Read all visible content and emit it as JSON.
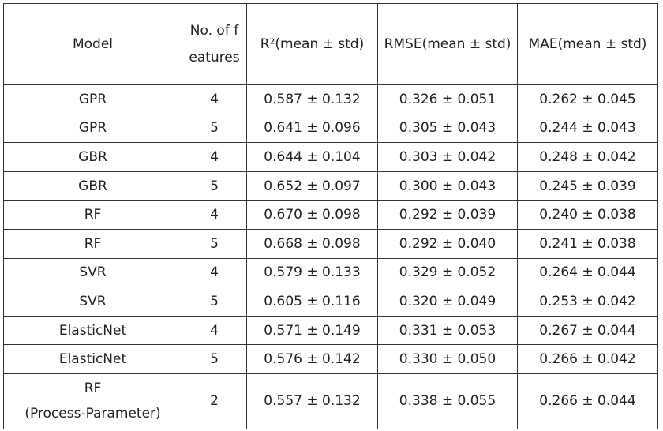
{
  "table": {
    "header": [
      "Model",
      "No. of features",
      "R²(mean ± std)",
      "RMSE(mean ± std)",
      "MAE(mean ± std)"
    ],
    "rows": [
      [
        "GPR",
        4,
        "0.587 ± 0.132",
        "0.326 ± 0.051",
        "0.262 ± 0.045"
      ],
      [
        "GPR",
        5,
        "0.641 ± 0.096",
        "0.305 ± 0.043",
        "0.244 ± 0.043"
      ],
      [
        "GBR",
        4,
        "0.644 ± 0.104",
        "0.303 ± 0.042",
        "0.248 ± 0.042"
      ],
      [
        "GBR",
        5,
        "0.652 ± 0.097",
        "0.300 ± 0.043",
        "0.245 ± 0.039"
      ],
      [
        "RF",
        4,
        "0.670 ± 0.098",
        "0.292 ± 0.039",
        "0.240 ± 0.038"
      ],
      [
        "RF",
        5,
        "0.668 ± 0.098",
        "0.292 ± 0.040",
        "0.241 ± 0.038"
      ],
      [
        "SVR",
        4,
        "0.579 ± 0.133",
        "0.329 ± 0.052",
        "0.264 ± 0.044"
      ],
      [
        "SVR",
        5,
        "0.605 ± 0.116",
        "0.320 ± 0.049",
        "0.253 ± 0.042"
      ],
      [
        "ElasticNet",
        4,
        "0.571 ± 0.149",
        "0.331 ± 0.053",
        "0.267 ± 0.044"
      ],
      [
        "ElasticNet",
        5,
        "0.576 ± 0.142",
        "0.330 ± 0.050",
        "0.266 ± 0.042"
      ],
      [
        "RF\n(Process-Parameter)",
        2,
        "0.557 ± 0.132",
        "0.338 ± 0.055",
        "0.266 ± 0.044"
      ]
    ]
  }
}
